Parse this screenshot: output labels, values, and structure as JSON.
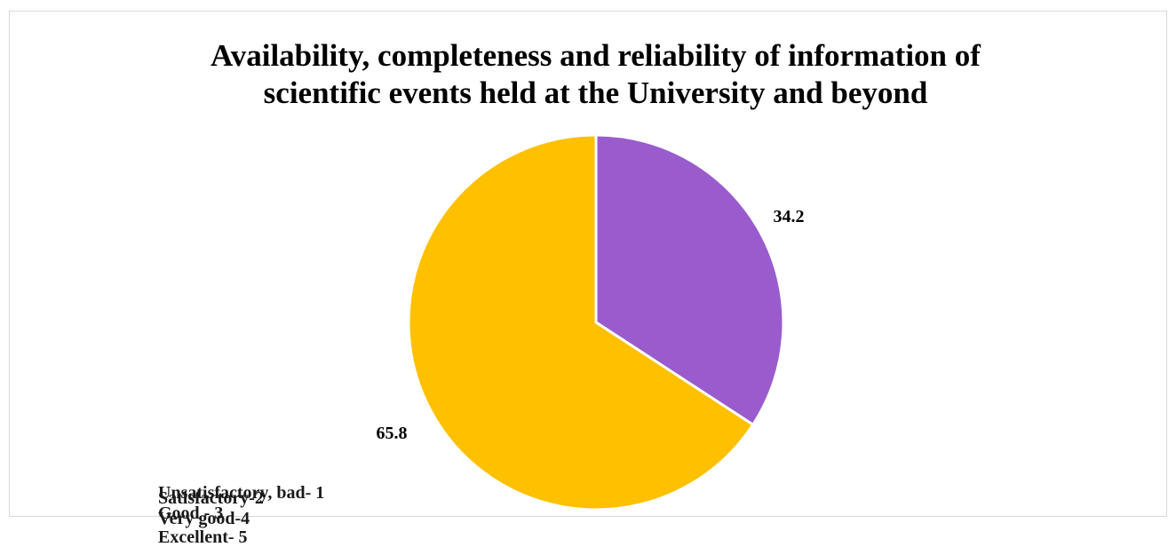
{
  "chart_data": {
    "type": "pie",
    "title": "Availability,  completeness and reliability of information of scientific events held at the University and beyond",
    "title_lines": [
      "Availability,  completeness and reliability of information of",
      "scientific events held at the University and beyond"
    ],
    "slices": [
      {
        "label": "Excellent- 5",
        "value": 34.2,
        "color": "#9a5ccd"
      },
      {
        "label": "Very good-4",
        "value": 65.8,
        "color": "#ffc000"
      }
    ],
    "legend": [
      "Unsatisfactory, bad- 1",
      "Satisfactory-2",
      "Good - 3",
      "Very good-4",
      "Excellent- 5"
    ],
    "legend_placement": "bottom-left, overlapping",
    "start_angle_deg": 0,
    "direction": "clockwise"
  }
}
